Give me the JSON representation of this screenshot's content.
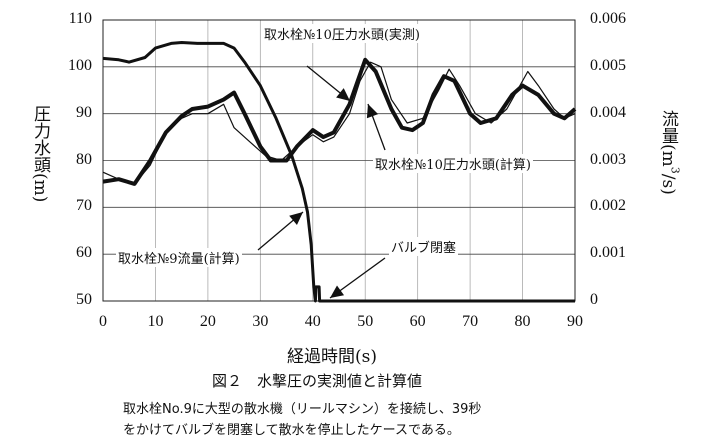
{
  "chart_data": {
    "type": "line",
    "xlabel": "経過時間(s)",
    "ylabel": "圧力水頭(m)",
    "y2label": "流量(m³/s)",
    "y2label_base": "流量(m",
    "y2label_sup": "3",
    "y2label_end": "/s)",
    "xlim": [
      0,
      90
    ],
    "ylim": [
      50,
      110
    ],
    "y2lim": [
      0,
      0.006
    ],
    "xticks": [
      "0",
      "10",
      "20",
      "30",
      "40",
      "50",
      "60",
      "70",
      "80",
      "90"
    ],
    "yticks": [
      "50",
      "60",
      "70",
      "80",
      "90",
      "100",
      "110"
    ],
    "y2ticks": [
      "0",
      "0.001",
      "0.002",
      "0.003",
      "0.004",
      "0.005",
      "0.006"
    ],
    "grid": true,
    "series": [
      {
        "name": "取水栓№10圧力水頭(実測)",
        "axis": "left",
        "style": "thin",
        "x": [
          0,
          3,
          6,
          9,
          12,
          15,
          17,
          20,
          23,
          25,
          28,
          31,
          34,
          37,
          40,
          42,
          44,
          47,
          49,
          51,
          53,
          55,
          58,
          61,
          64,
          66,
          68,
          71,
          74,
          77,
          79,
          81,
          83,
          86,
          88,
          90
        ],
        "y": [
          77.5,
          76,
          75,
          79,
          86,
          89,
          90,
          90,
          92,
          87,
          84,
          81,
          80,
          83,
          85.5,
          84,
          85,
          90,
          97,
          101,
          100,
          93,
          88,
          89,
          95,
          99.5,
          96,
          90,
          88,
          91,
          95,
          99,
          96,
          91,
          89,
          90
        ]
      },
      {
        "name": "取水栓№10圧力水頭(計算)",
        "axis": "left",
        "style": "thick",
        "x": [
          0,
          3,
          6,
          9,
          12,
          15,
          17,
          20,
          23,
          25,
          27,
          30,
          32,
          35,
          37,
          40,
          42,
          44,
          47,
          50,
          52,
          55,
          57,
          59,
          61,
          63,
          65,
          67,
          70,
          72,
          75,
          78,
          80,
          83,
          86,
          88,
          90
        ],
        "y": [
          75.5,
          76,
          75,
          80,
          86,
          89.5,
          91,
          91.5,
          93,
          94.5,
          90,
          83,
          80,
          80,
          83,
          86.5,
          85,
          86,
          92,
          101.5,
          99,
          91,
          87,
          86.5,
          88,
          94,
          98,
          97,
          90,
          88,
          89,
          94,
          96,
          94,
          90,
          89,
          91
        ]
      },
      {
        "name": "取水栓№9流量(計算)",
        "axis": "right",
        "style": "thick",
        "x": [
          0,
          3,
          5,
          8,
          10,
          13,
          15,
          18,
          20,
          23,
          25,
          27,
          30,
          33,
          36,
          38,
          39,
          39.7,
          40.2,
          40.5,
          40.6,
          41.2,
          41.3,
          90
        ],
        "y": [
          0.00518,
          0.00515,
          0.0051,
          0.0052,
          0.0054,
          0.0055,
          0.00552,
          0.0055,
          0.0055,
          0.0055,
          0.0054,
          0.0051,
          0.0046,
          0.0039,
          0.0031,
          0.0024,
          0.0019,
          0.0012,
          0.0003,
          0,
          0.0003,
          0.0003,
          0,
          0
        ]
      }
    ],
    "annotations": [
      {
        "text": "取水栓№10圧力水頭(実測)",
        "target": "measured pressure peak at 50 s"
      },
      {
        "text": "取水栓№10圧力水頭(計算)",
        "target": "calculated pressure at 50 s"
      },
      {
        "text": "取水栓№9流量(計算)",
        "target": "flow curve"
      },
      {
        "text": "バルブ閉塞",
        "target": "valve closure at ~41 s"
      }
    ]
  },
  "caption": "図２　水撃圧の実測値と計算値",
  "note_line1": "取水栓No.9に大型の散水機（リールマシン）を接続し、39秒",
  "note_line2": "をかけてバルブを閉塞して散水を停止したケースである。"
}
